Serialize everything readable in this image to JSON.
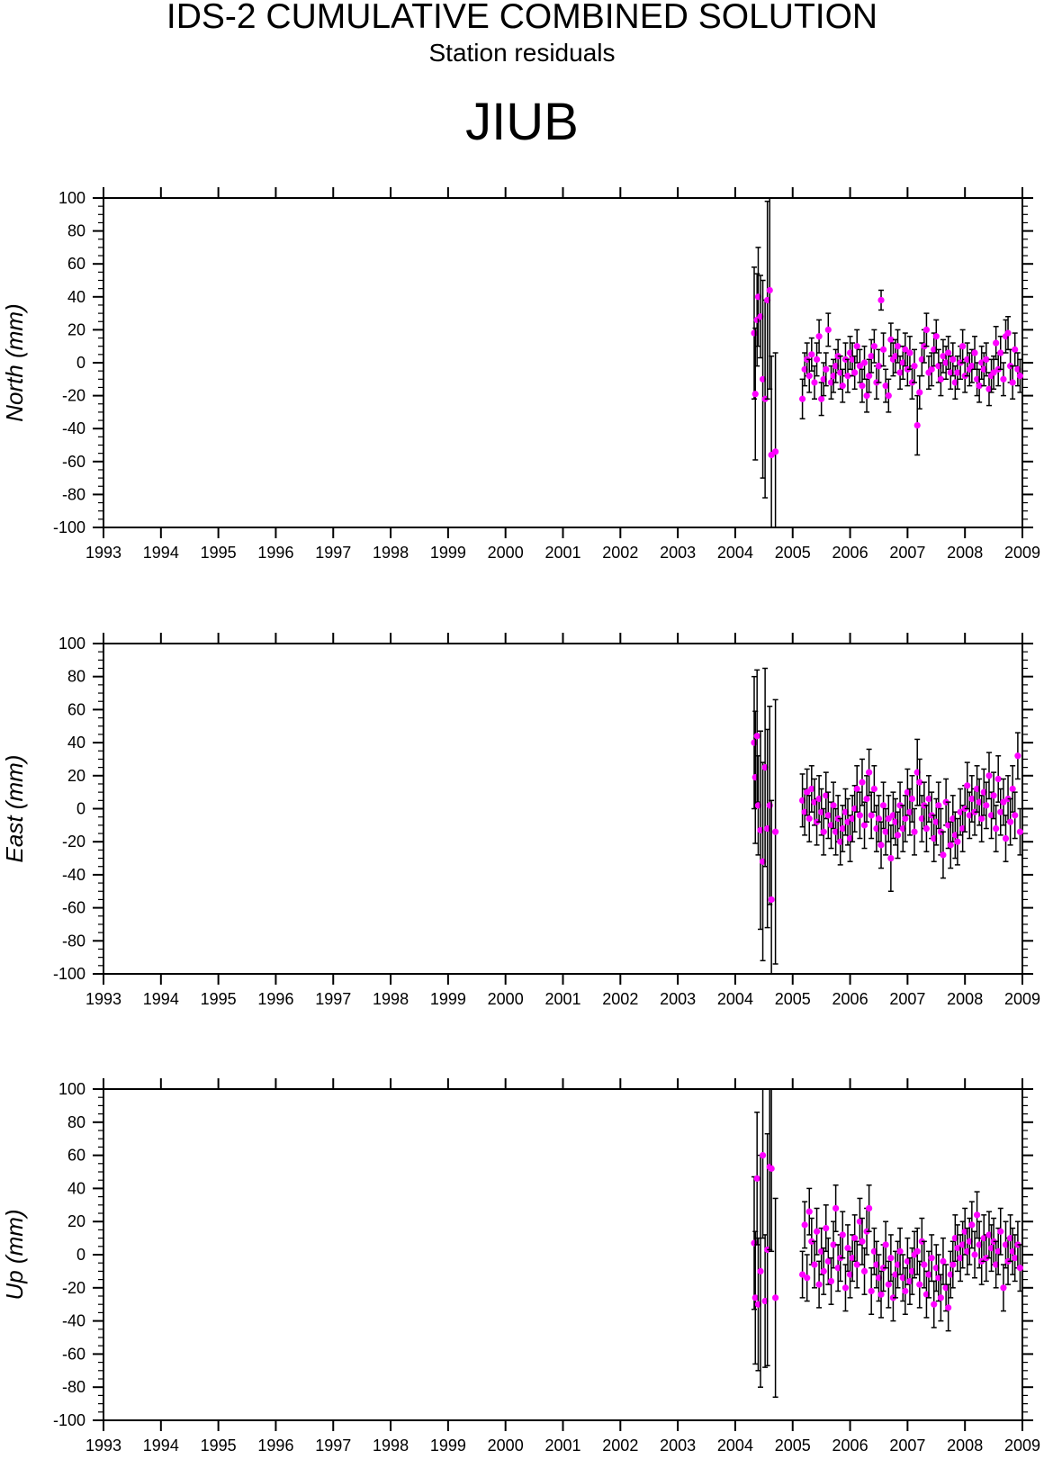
{
  "header": {
    "title": "IDS-2 CUMULATIVE COMBINED SOLUTION",
    "subtitle": "Station residuals",
    "station": "JIUB"
  },
  "colors": {
    "point": "#ff00ff",
    "errorbar": "#000000",
    "axis": "#000000",
    "background": "#ffffff"
  },
  "chart_data": [
    {
      "type": "scatter",
      "panel": "north",
      "ylabel": "North (mm)",
      "xlim": [
        1993,
        2009
      ],
      "ylim": [
        -100,
        100
      ],
      "xticks": [
        "1993",
        "1994",
        "1995",
        "1996",
        "1997",
        "1998",
        "1999",
        "2000",
        "2001",
        "2002",
        "2003",
        "2004",
        "2005",
        "2006",
        "2007",
        "2008",
        "2009"
      ],
      "yticks": [
        "100",
        "80",
        "60",
        "40",
        "20",
        "0",
        "-20",
        "-40",
        "-60",
        "-80",
        "-100"
      ],
      "grid": false,
      "series": [
        {
          "x": [
            2004.33,
            2004.35,
            2004.38,
            2004.4,
            2004.44,
            2004.48,
            2004.52,
            2004.56,
            2004.6,
            2004.63,
            2004.7,
            2005.17,
            2005.21,
            2005.25,
            2005.29,
            2005.33,
            2005.38,
            2005.42,
            2005.46,
            2005.5,
            2005.54,
            2005.58,
            2005.62,
            2005.67,
            2005.71,
            2005.75,
            2005.79,
            2005.83,
            2005.87,
            2005.92,
            2005.96,
            2006.0,
            2006.04,
            2006.08,
            2006.12,
            2006.17,
            2006.21,
            2006.25,
            2006.29,
            2006.33,
            2006.37,
            2006.42,
            2006.46,
            2006.5,
            2006.54,
            2006.58,
            2006.62,
            2006.67,
            2006.71,
            2006.75,
            2006.79,
            2006.83,
            2006.87,
            2006.92,
            2006.96,
            2007.0,
            2007.04,
            2007.08,
            2007.12,
            2007.17,
            2007.21,
            2007.25,
            2007.29,
            2007.33,
            2007.37,
            2007.42,
            2007.46,
            2007.5,
            2007.54,
            2007.58,
            2007.62,
            2007.67,
            2007.71,
            2007.75,
            2007.79,
            2007.83,
            2007.87,
            2007.92,
            2007.96,
            2008.0,
            2008.04,
            2008.08,
            2008.12,
            2008.17,
            2008.21,
            2008.25,
            2008.29,
            2008.33,
            2008.37,
            2008.42,
            2008.46,
            2008.5,
            2008.54,
            2008.58,
            2008.62,
            2008.67,
            2008.71,
            2008.75,
            2008.79,
            2008.83,
            2008.87,
            2008.92,
            2008.96
          ],
          "y": [
            18,
            -19,
            26,
            40,
            28,
            -10,
            -22,
            38,
            44,
            -56,
            -54,
            -22,
            -4,
            2,
            -8,
            5,
            -12,
            2,
            16,
            -22,
            -10,
            -4,
            20,
            -12,
            -8,
            -2,
            4,
            -6,
            -14,
            2,
            -8,
            6,
            2,
            -6,
            10,
            -2,
            -14,
            0,
            -20,
            -8,
            4,
            10,
            -12,
            -2,
            38,
            8,
            -14,
            -20,
            14,
            2,
            4,
            10,
            -6,
            0,
            8,
            -4,
            6,
            -12,
            -2,
            -38,
            -18,
            2,
            10,
            20,
            -6,
            -4,
            8,
            16,
            -2,
            -10,
            4,
            0,
            6,
            -6,
            2,
            -12,
            -6,
            0,
            10,
            -8,
            2,
            -4,
            -2,
            6,
            -10,
            -14,
            0,
            -4,
            2,
            -16,
            -8,
            -6,
            12,
            -4,
            6,
            -10,
            16,
            18,
            -2,
            -12,
            8,
            -4,
            -8
          ],
          "err": [
            40,
            40,
            28,
            30,
            25,
            60,
            60,
            60,
            60,
            60,
            60,
            12,
            10,
            10,
            10,
            10,
            10,
            10,
            10,
            10,
            10,
            10,
            10,
            10,
            10,
            10,
            10,
            10,
            10,
            10,
            10,
            10,
            10,
            10,
            10,
            10,
            10,
            10,
            10,
            10,
            10,
            10,
            10,
            10,
            6,
            10,
            10,
            10,
            10,
            10,
            10,
            10,
            10,
            10,
            10,
            10,
            10,
            10,
            10,
            18,
            10,
            10,
            10,
            10,
            10,
            10,
            10,
            10,
            10,
            10,
            10,
            10,
            10,
            10,
            10,
            10,
            10,
            10,
            10,
            10,
            10,
            10,
            10,
            10,
            10,
            10,
            10,
            10,
            10,
            10,
            10,
            10,
            10,
            10,
            10,
            10,
            10,
            10,
            10,
            10,
            10,
            10,
            10
          ]
        }
      ]
    },
    {
      "type": "scatter",
      "panel": "east",
      "ylabel": "East (mm)",
      "xlim": [
        1993,
        2009
      ],
      "ylim": [
        -100,
        100
      ],
      "xticks": [
        "1993",
        "1994",
        "1995",
        "1996",
        "1997",
        "1998",
        "1999",
        "2000",
        "2001",
        "2002",
        "2003",
        "2004",
        "2005",
        "2006",
        "2007",
        "2008",
        "2009"
      ],
      "yticks": [
        "100",
        "80",
        "60",
        "40",
        "20",
        "0",
        "-20",
        "-40",
        "-60",
        "-80",
        "-100"
      ],
      "grid": false,
      "series": [
        {
          "x": [
            2004.33,
            2004.35,
            2004.38,
            2004.4,
            2004.44,
            2004.48,
            2004.52,
            2004.56,
            2004.6,
            2004.63,
            2004.7,
            2005.17,
            2005.21,
            2005.25,
            2005.29,
            2005.33,
            2005.38,
            2005.42,
            2005.46,
            2005.5,
            2005.54,
            2005.58,
            2005.62,
            2005.67,
            2005.71,
            2005.75,
            2005.79,
            2005.83,
            2005.87,
            2005.92,
            2005.96,
            2006.0,
            2006.04,
            2006.08,
            2006.12,
            2006.17,
            2006.21,
            2006.25,
            2006.29,
            2006.33,
            2006.37,
            2006.42,
            2006.46,
            2006.5,
            2006.54,
            2006.58,
            2006.62,
            2006.67,
            2006.71,
            2006.75,
            2006.79,
            2006.83,
            2006.87,
            2006.92,
            2006.96,
            2007.0,
            2007.04,
            2007.08,
            2007.12,
            2007.17,
            2007.21,
            2007.25,
            2007.29,
            2007.33,
            2007.37,
            2007.42,
            2007.46,
            2007.5,
            2007.54,
            2007.58,
            2007.62,
            2007.67,
            2007.71,
            2007.75,
            2007.79,
            2007.83,
            2007.87,
            2007.92,
            2007.96,
            2008.0,
            2008.04,
            2008.08,
            2008.12,
            2008.17,
            2008.21,
            2008.25,
            2008.29,
            2008.33,
            2008.37,
            2008.42,
            2008.46,
            2008.5,
            2008.54,
            2008.58,
            2008.62,
            2008.67,
            2008.71,
            2008.75,
            2008.79,
            2008.83,
            2008.87,
            2008.92,
            2008.96
          ],
          "y": [
            40,
            19,
            44,
            2,
            -13,
            -32,
            25,
            -12,
            2,
            -55,
            -14,
            5,
            -2,
            10,
            -6,
            12,
            4,
            -8,
            6,
            -2,
            -14,
            8,
            -4,
            -10,
            2,
            -14,
            -6,
            -20,
            -12,
            -2,
            -8,
            -18,
            -6,
            0,
            12,
            -4,
            16,
            -10,
            6,
            22,
            -4,
            12,
            -12,
            -6,
            -22,
            2,
            -14,
            -6,
            -30,
            -4,
            -8,
            -16,
            2,
            -12,
            -6,
            10,
            -2,
            6,
            -14,
            22,
            16,
            -6,
            2,
            -12,
            6,
            -4,
            -18,
            -8,
            2,
            -14,
            -28,
            4,
            -10,
            -22,
            -6,
            -16,
            -20,
            -2,
            -12,
            0,
            14,
            -4,
            6,
            -2,
            12,
            4,
            -6,
            10,
            2,
            20,
            -4,
            8,
            -12,
            18,
            -2,
            4,
            -18,
            6,
            -8,
            12,
            -4,
            32,
            -14
          ],
          "err": [
            40,
            40,
            40,
            30,
            60,
            60,
            60,
            60,
            60,
            60,
            80,
            16,
            14,
            14,
            14,
            14,
            14,
            14,
            14,
            14,
            14,
            14,
            14,
            14,
            14,
            14,
            14,
            14,
            14,
            14,
            14,
            14,
            14,
            14,
            14,
            14,
            14,
            14,
            14,
            14,
            14,
            14,
            14,
            14,
            14,
            14,
            14,
            14,
            20,
            14,
            14,
            14,
            14,
            14,
            14,
            14,
            14,
            14,
            14,
            20,
            14,
            14,
            14,
            14,
            14,
            14,
            14,
            14,
            14,
            14,
            14,
            14,
            14,
            14,
            14,
            14,
            14,
            14,
            14,
            14,
            14,
            14,
            14,
            14,
            14,
            14,
            14,
            14,
            14,
            14,
            14,
            14,
            14,
            14,
            14,
            14,
            14,
            14,
            14,
            14,
            14,
            14,
            14
          ]
        }
      ]
    },
    {
      "type": "scatter",
      "panel": "up",
      "ylabel": "Up (mm)",
      "xlim": [
        1993,
        2009
      ],
      "ylim": [
        -100,
        100
      ],
      "xticks": [
        "1993",
        "1994",
        "1995",
        "1996",
        "1997",
        "1998",
        "1999",
        "2000",
        "2001",
        "2002",
        "2003",
        "2004",
        "2005",
        "2006",
        "2007",
        "2008",
        "2009"
      ],
      "yticks": [
        "100",
        "80",
        "60",
        "40",
        "20",
        "0",
        "-20",
        "-40",
        "-60",
        "-80",
        "-100"
      ],
      "grid": false,
      "series": [
        {
          "x": [
            2004.33,
            2004.35,
            2004.38,
            2004.4,
            2004.44,
            2004.48,
            2004.52,
            2004.56,
            2004.6,
            2004.63,
            2004.7,
            2005.17,
            2005.21,
            2005.25,
            2005.29,
            2005.33,
            2005.38,
            2005.42,
            2005.46,
            2005.5,
            2005.54,
            2005.58,
            2005.62,
            2005.67,
            2005.71,
            2005.75,
            2005.79,
            2005.83,
            2005.87,
            2005.92,
            2005.96,
            2006.0,
            2006.04,
            2006.08,
            2006.12,
            2006.17,
            2006.21,
            2006.25,
            2006.29,
            2006.33,
            2006.37,
            2006.42,
            2006.46,
            2006.5,
            2006.54,
            2006.58,
            2006.62,
            2006.67,
            2006.71,
            2006.75,
            2006.79,
            2006.83,
            2006.87,
            2006.92,
            2006.96,
            2007.0,
            2007.04,
            2007.08,
            2007.12,
            2007.17,
            2007.21,
            2007.25,
            2007.29,
            2007.33,
            2007.37,
            2007.42,
            2007.46,
            2007.5,
            2007.54,
            2007.58,
            2007.62,
            2007.67,
            2007.71,
            2007.75,
            2007.79,
            2007.83,
            2007.87,
            2007.92,
            2007.96,
            2008.0,
            2008.04,
            2008.08,
            2008.12,
            2008.17,
            2008.21,
            2008.25,
            2008.29,
            2008.33,
            2008.37,
            2008.42,
            2008.46,
            2008.5,
            2008.54,
            2008.58,
            2008.62,
            2008.67,
            2008.71,
            2008.75,
            2008.79,
            2008.83,
            2008.87,
            2008.92,
            2008.96
          ],
          "y": [
            7,
            -26,
            46,
            -30,
            -10,
            60,
            -28,
            3,
            53,
            52,
            -26,
            -12,
            18,
            -14,
            26,
            8,
            -6,
            14,
            -18,
            2,
            -10,
            16,
            -4,
            -16,
            6,
            28,
            -8,
            -2,
            12,
            -20,
            4,
            -12,
            -2,
            10,
            -6,
            20,
            8,
            -10,
            14,
            28,
            -22,
            2,
            -6,
            -14,
            -24,
            -8,
            6,
            -18,
            -2,
            -26,
            -12,
            -6,
            2,
            -14,
            -22,
            -4,
            -16,
            -10,
            0,
            2,
            -18,
            8,
            -6,
            -24,
            -12,
            -2,
            -30,
            -8,
            -14,
            -26,
            -4,
            -20,
            -32,
            -12,
            -6,
            10,
            4,
            -2,
            6,
            14,
            2,
            8,
            18,
            0,
            24,
            6,
            -4,
            10,
            -2,
            12,
            4,
            8,
            -6,
            2,
            14,
            -20,
            6,
            -4,
            10,
            2,
            -2,
            6,
            -8
          ],
          "err": [
            40,
            40,
            40,
            40,
            70,
            50,
            40,
            70,
            50,
            50,
            60,
            14,
            14,
            14,
            14,
            14,
            14,
            14,
            14,
            14,
            14,
            14,
            14,
            14,
            14,
            14,
            14,
            14,
            14,
            14,
            14,
            14,
            14,
            14,
            14,
            14,
            14,
            14,
            14,
            14,
            14,
            14,
            14,
            14,
            14,
            14,
            14,
            14,
            14,
            14,
            14,
            14,
            14,
            14,
            14,
            14,
            14,
            14,
            14,
            14,
            14,
            14,
            14,
            14,
            14,
            14,
            14,
            14,
            14,
            14,
            14,
            14,
            14,
            14,
            14,
            14,
            14,
            14,
            14,
            14,
            14,
            14,
            14,
            14,
            14,
            14,
            14,
            14,
            14,
            14,
            14,
            14,
            14,
            14,
            14,
            14,
            14,
            14,
            14,
            14,
            14,
            14,
            14
          ]
        }
      ]
    }
  ]
}
